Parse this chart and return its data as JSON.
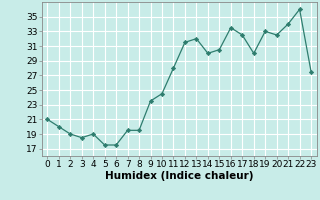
{
  "x": [
    0,
    1,
    2,
    3,
    4,
    5,
    6,
    7,
    8,
    9,
    10,
    11,
    12,
    13,
    14,
    15,
    16,
    17,
    18,
    19,
    20,
    21,
    22,
    23
  ],
  "y": [
    21,
    20,
    19,
    18.5,
    19,
    17.5,
    17.5,
    19.5,
    19.5,
    23.5,
    24.5,
    28,
    31.5,
    32,
    30,
    30.5,
    33.5,
    32.5,
    30,
    33,
    32.5,
    34,
    36,
    27.5
  ],
  "line_color": "#2e7d6e",
  "marker_color": "#2e7d6e",
  "bg_color": "#c8ece8",
  "grid_color": "#a0d8d0",
  "xlabel": "Humidex (Indice chaleur)",
  "ylim": [
    16,
    37
  ],
  "xlim": [
    -0.5,
    23.5
  ],
  "yticks": [
    17,
    19,
    21,
    23,
    25,
    27,
    29,
    31,
    33,
    35
  ],
  "xticks": [
    0,
    1,
    2,
    3,
    4,
    5,
    6,
    7,
    8,
    9,
    10,
    11,
    12,
    13,
    14,
    15,
    16,
    17,
    18,
    19,
    20,
    21,
    22,
    23
  ],
  "tick_fontsize": 6.5,
  "xlabel_fontsize": 7.5,
  "figwidth": 3.2,
  "figheight": 2.0,
  "dpi": 100
}
